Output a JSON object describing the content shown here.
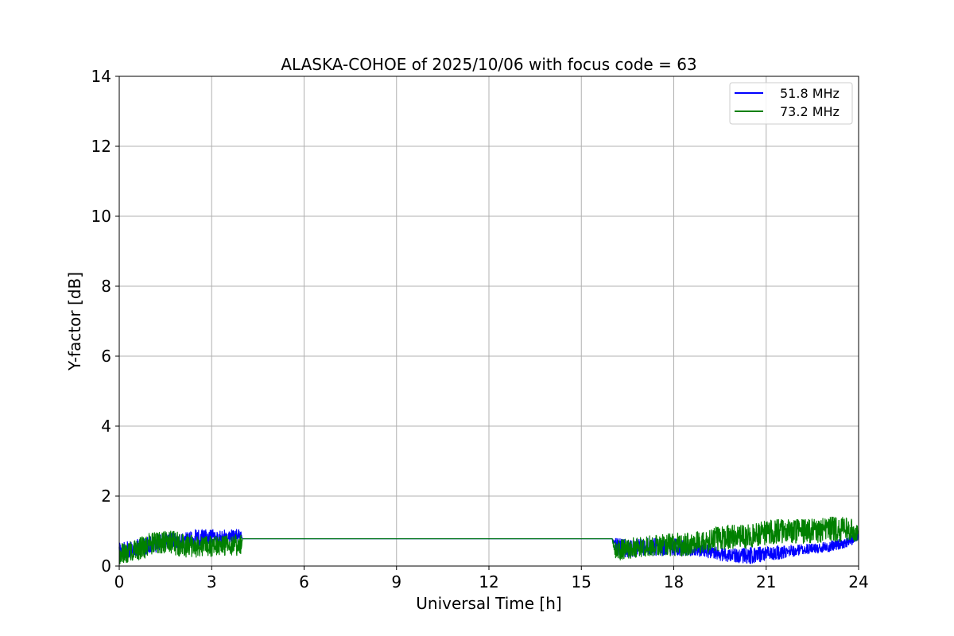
{
  "chart_data": {
    "type": "line",
    "title": "ALASKA-COHOE of 2025/10/06 with focus code = 63",
    "xlabel": "Universal Time [h]",
    "ylabel": "Y-factor [dB]",
    "xlim": [
      0,
      24
    ],
    "ylim": [
      0,
      14
    ],
    "xticks": [
      "0",
      "3",
      "6",
      "9",
      "12",
      "15",
      "18",
      "21",
      "24"
    ],
    "yticks": [
      "0",
      "2",
      "4",
      "6",
      "8",
      "10",
      "12",
      "14"
    ],
    "grid": true,
    "legend_position": "top-right",
    "series": [
      {
        "name": "51.8 MHz",
        "color": "#0000ff",
        "x": [
          0,
          0.5,
          1.0,
          1.5,
          2.0,
          2.5,
          3.0,
          3.5,
          3.95,
          4.0,
          16.0,
          16.1,
          16.5,
          17.0,
          17.5,
          18.0,
          18.5,
          19.0,
          19.5,
          20.0,
          20.5,
          21.0,
          21.5,
          22.0,
          22.5,
          23.0,
          23.5,
          24.0
        ],
        "y": [
          0.4,
          0.5,
          0.6,
          0.7,
          0.7,
          0.8,
          0.85,
          0.85,
          0.85,
          0.78,
          0.78,
          0.55,
          0.5,
          0.55,
          0.55,
          0.55,
          0.5,
          0.45,
          0.35,
          0.3,
          0.3,
          0.35,
          0.4,
          0.45,
          0.5,
          0.55,
          0.65,
          0.85
        ],
        "noise": [
          0.25,
          0.25,
          0.25,
          0.25,
          0.25,
          0.25,
          0.2,
          0.2,
          0.2,
          0,
          0,
          0.25,
          0.25,
          0.25,
          0.25,
          0.25,
          0.2,
          0.2,
          0.2,
          0.2,
          0.25,
          0.2,
          0.2,
          0.15,
          0.15,
          0.15,
          0.15,
          0.15
        ]
      },
      {
        "name": "73.2 MHz",
        "color": "#008000",
        "x": [
          0,
          0.5,
          1.0,
          1.5,
          2.0,
          2.5,
          3.0,
          3.5,
          3.95,
          4.0,
          16.0,
          16.1,
          16.5,
          17.0,
          17.5,
          18.0,
          18.5,
          19.0,
          19.5,
          20.0,
          20.5,
          21.0,
          21.5,
          22.0,
          22.5,
          23.0,
          23.5,
          24.0
        ],
        "y": [
          0.35,
          0.45,
          0.6,
          0.7,
          0.6,
          0.55,
          0.55,
          0.6,
          0.6,
          0.78,
          0.78,
          0.45,
          0.5,
          0.55,
          0.6,
          0.6,
          0.65,
          0.7,
          0.8,
          0.85,
          0.85,
          0.95,
          1.0,
          1.0,
          1.0,
          1.05,
          1.05,
          1.0
        ],
        "noise": [
          0.3,
          0.3,
          0.35,
          0.35,
          0.35,
          0.3,
          0.3,
          0.3,
          0.3,
          0,
          0,
          0.3,
          0.3,
          0.3,
          0.3,
          0.35,
          0.35,
          0.35,
          0.35,
          0.35,
          0.35,
          0.35,
          0.35,
          0.35,
          0.35,
          0.35,
          0.35,
          0.3
        ]
      }
    ]
  }
}
